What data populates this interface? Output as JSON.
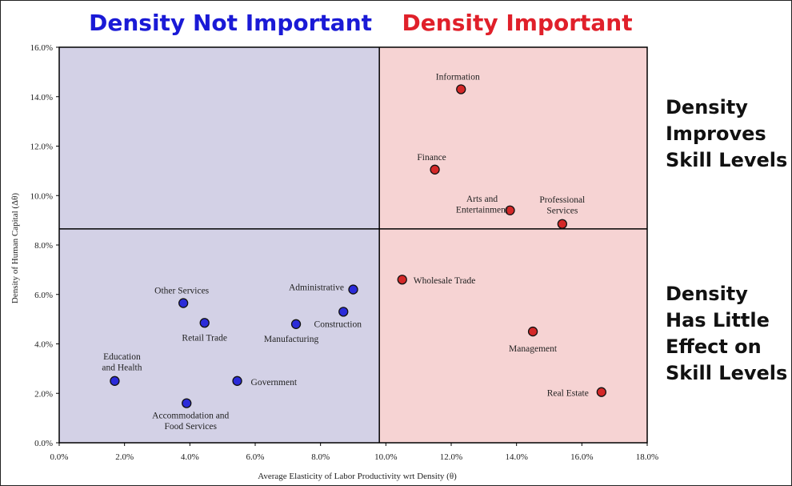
{
  "headings": {
    "left": "Density Not Important",
    "right": "Density Important",
    "top_right_lines": [
      "Density",
      "Improves",
      "Skill Levels"
    ],
    "bottom_right_lines": [
      "Density",
      "Has Little",
      "Effect on",
      "Skill Levels"
    ]
  },
  "colors": {
    "left_heading": "#1a1ad6",
    "right_heading": "#e0202a",
    "left_region": "#d3d1e6",
    "right_region": "#f6d3d3",
    "blue_point": "#2b2bd9",
    "red_point": "#d42828",
    "side_text": "#111111"
  },
  "chart_data": {
    "type": "scatter",
    "xlabel": "Average  Elasticity of Labor Productivity wrt Density (θ)",
    "ylabel": "Density of Human Capital (Δθ)",
    "xlim": [
      0,
      18
    ],
    "ylim": [
      0,
      16
    ],
    "x_ticks": [
      0,
      2,
      4,
      6,
      8,
      10,
      12,
      14,
      16,
      18
    ],
    "y_ticks": [
      0,
      2,
      4,
      6,
      8,
      10,
      12,
      14,
      16
    ],
    "x_tick_labels": [
      "0.0%",
      "2.0%",
      "4.0%",
      "6.0%",
      "8.0%",
      "10.0%",
      "12.0%",
      "14.0%",
      "16.0%",
      "18.0%"
    ],
    "y_tick_labels": [
      "0.0%",
      "2.0%",
      "4.0%",
      "6.0%",
      "8.0%",
      "10.0%",
      "12.0%",
      "14.0%",
      "16.0%"
    ],
    "x_split": 9.8,
    "y_split": 8.65,
    "grid": false,
    "points": [
      {
        "label": [
          "Information"
        ],
        "x": 12.3,
        "y": 14.3,
        "group": "red"
      },
      {
        "label": [
          "Finance"
        ],
        "x": 11.5,
        "y": 11.05,
        "group": "red"
      },
      {
        "label": [
          "Arts and",
          "Entertainment"
        ],
        "x": 13.8,
        "y": 9.4,
        "group": "red"
      },
      {
        "label": [
          "Professional",
          "Services"
        ],
        "x": 15.4,
        "y": 8.85,
        "group": "red"
      },
      {
        "label": [
          "Wholesale Trade"
        ],
        "x": 10.5,
        "y": 6.6,
        "group": "red"
      },
      {
        "label": [
          "Management"
        ],
        "x": 14.5,
        "y": 4.5,
        "group": "red"
      },
      {
        "label": [
          "Real Estate"
        ],
        "x": 16.6,
        "y": 2.05,
        "group": "red"
      },
      {
        "label": [
          "Other Services"
        ],
        "x": 3.8,
        "y": 5.65,
        "group": "blue"
      },
      {
        "label": [
          "Retail Trade"
        ],
        "x": 4.45,
        "y": 4.85,
        "group": "blue"
      },
      {
        "label": [
          "Administrative"
        ],
        "x": 9.0,
        "y": 6.2,
        "group": "blue"
      },
      {
        "label": [
          "Construction"
        ],
        "x": 8.7,
        "y": 5.3,
        "group": "blue"
      },
      {
        "label": [
          "Manufacturing"
        ],
        "x": 7.25,
        "y": 4.8,
        "group": "blue"
      },
      {
        "label": [
          "Education",
          "and Health"
        ],
        "x": 1.7,
        "y": 2.5,
        "group": "blue"
      },
      {
        "label": [
          "Government"
        ],
        "x": 5.45,
        "y": 2.5,
        "group": "blue"
      },
      {
        "label": [
          "Accommodation and",
          "Food Services"
        ],
        "x": 3.9,
        "y": 1.6,
        "group": "blue"
      }
    ]
  }
}
